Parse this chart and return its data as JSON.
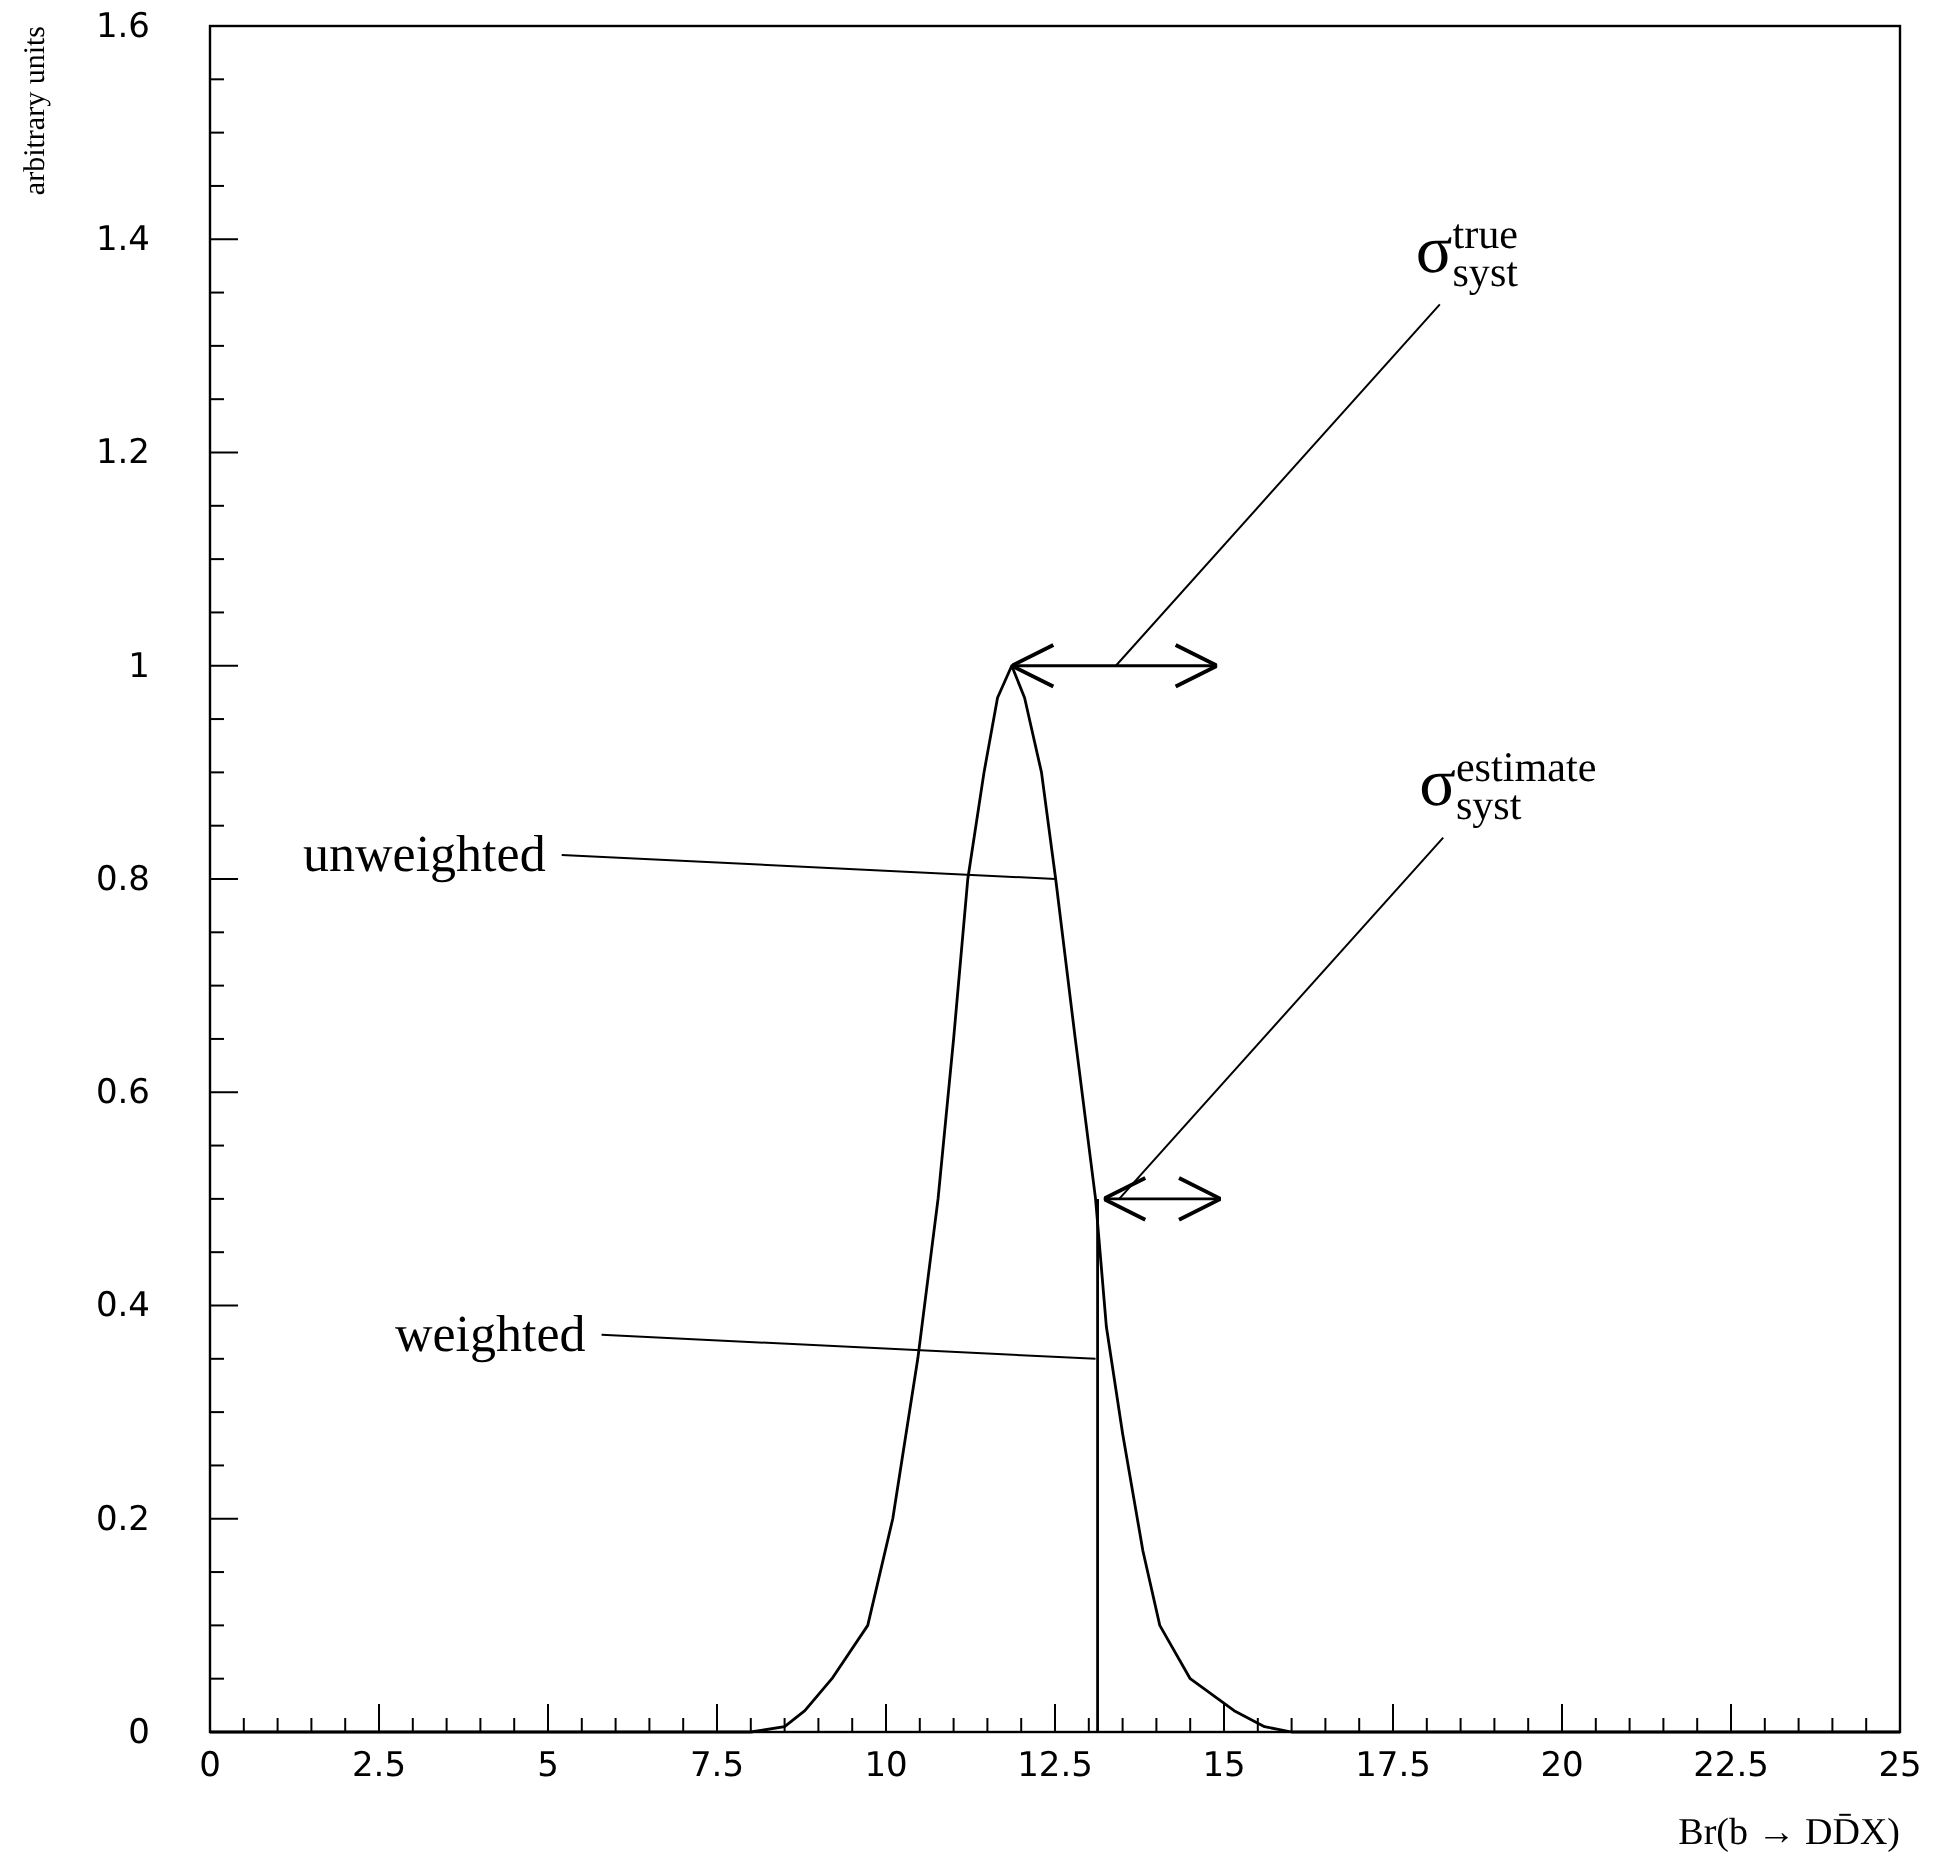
{
  "chart_data": {
    "type": "line",
    "xlabel": "Br(b → DD̄X)",
    "ylabel": "arbitrary units",
    "xlim": [
      0,
      25
    ],
    "ylim": [
      0,
      1.6
    ],
    "xticks": [
      0,
      {
        "value": 0.5,
        "label": null
      },
      {
        "value": 1,
        "label": null
      },
      {
        "value": 1.5,
        "label": null
      },
      {
        "value": 2,
        "label": null
      },
      2.5,
      {
        "value": 3,
        "label": null
      },
      {
        "value": 3.5,
        "label": null
      },
      {
        "value": 4,
        "label": null
      },
      {
        "value": 4.5,
        "label": null
      },
      5,
      {
        "value": 5.5,
        "label": null
      },
      {
        "value": 6,
        "label": null
      },
      {
        "value": 6.5,
        "label": null
      },
      {
        "value": 7,
        "label": null
      },
      7.5,
      {
        "value": 8,
        "label": null
      },
      {
        "value": 8.5,
        "label": null
      },
      {
        "value": 9,
        "label": null
      },
      {
        "value": 9.5,
        "label": null
      },
      10,
      {
        "value": 10.5,
        "label": null
      },
      {
        "value": 11,
        "label": null
      },
      {
        "value": 11.5,
        "label": null
      },
      {
        "value": 12,
        "label": null
      },
      12.5,
      {
        "value": 13,
        "label": null
      },
      {
        "value": 13.5,
        "label": null
      },
      {
        "value": 14,
        "label": null
      },
      {
        "value": 14.5,
        "label": null
      },
      15,
      {
        "value": 15.5,
        "label": null
      },
      {
        "value": 16,
        "label": null
      },
      {
        "value": 16.5,
        "label": null
      },
      {
        "value": 17,
        "label": null
      },
      17.5,
      {
        "value": 18,
        "label": null
      },
      {
        "value": 18.5,
        "label": null
      },
      {
        "value": 19,
        "label": null
      },
      {
        "value": 19.5,
        "label": null
      },
      20,
      {
        "value": 20.5,
        "label": null
      },
      {
        "value": 21,
        "label": null
      },
      {
        "value": 21.5,
        "label": null
      },
      {
        "value": 22,
        "label": null
      },
      22.5,
      {
        "value": 23,
        "label": null
      },
      {
        "value": 23.5,
        "label": null
      },
      {
        "value": 24,
        "label": null
      },
      {
        "value": 24.5,
        "label": null
      },
      25
    ],
    "yticks": [
      0,
      {
        "value": 0.05,
        "label": null
      },
      {
        "value": 0.1,
        "label": null
      },
      {
        "value": 0.15,
        "label": null
      },
      0.2,
      {
        "value": 0.25,
        "label": null
      },
      {
        "value": 0.3,
        "label": null
      },
      {
        "value": 0.35,
        "label": null
      },
      0.4,
      {
        "value": 0.45,
        "label": null
      },
      {
        "value": 0.5,
        "label": null
      },
      {
        "value": 0.55,
        "label": null
      },
      0.6,
      {
        "value": 0.65,
        "label": null
      },
      {
        "value": 0.7,
        "label": null
      },
      {
        "value": 0.75,
        "label": null
      },
      0.8,
      {
        "value": 0.85,
        "label": null
      },
      {
        "value": 0.9,
        "label": null
      },
      {
        "value": 0.95,
        "label": null
      },
      1,
      {
        "value": 1.05,
        "label": null
      },
      {
        "value": 1.1,
        "label": null
      },
      {
        "value": 1.15,
        "label": null
      },
      1.2,
      {
        "value": 1.25,
        "label": null
      },
      {
        "value": 1.3,
        "label": null
      },
      {
        "value": 1.35,
        "label": null
      },
      1.4,
      {
        "value": 1.45,
        "label": null
      },
      {
        "value": 1.5,
        "label": null
      },
      {
        "value": 1.55,
        "label": null
      },
      1.6
    ],
    "series": [
      {
        "color": "#000000",
        "x": [
          0,
          8,
          8.5,
          8.8,
          9.2,
          9.73,
          10.1,
          10.47,
          10.77,
          11,
          11.21,
          11.45,
          11.65,
          11.86,
          12.05,
          12.3,
          12.51,
          12.8,
          13.1,
          13.26,
          13.5,
          13.8,
          14.05,
          14.5,
          15.15,
          15.6,
          16,
          25
        ],
        "values": [
          0,
          0,
          0.005,
          0.02,
          0.05,
          0.1,
          0.2,
          0.35,
          0.5,
          0.65,
          0.8,
          0.9,
          0.97,
          1,
          0.97,
          0.9,
          0.8,
          0.65,
          0.5,
          0.38,
          0.28,
          0.17,
          0.1,
          0.05,
          0.02,
          0.005,
          0,
          0
        ]
      },
      {
        "color": "#000000",
        "x": [
          13.13,
          13.13
        ],
        "values": [
          0,
          0.5
        ]
      },
      {
        "color": "#000000",
        "x": [
          11.86,
          13.4,
          14.9
        ],
        "values": [
          1,
          1,
          1
        ]
      },
      {
        "color": "#000000",
        "x": [
          13.22,
          13.45,
          14.95
        ],
        "values": [
          0.5,
          0.5,
          0.5
        ]
      }
    ],
    "annotations": [
      {
        "text": "unweighted",
        "x": 12.51,
        "y": 0.8
      },
      {
        "text": "weighted",
        "x": 13.1,
        "y": 0.35
      },
      {
        "text": "σ$_{syst}$$^{true}$",
        "x": 13.4,
        "y": 1
      },
      {
        "text": "σ$_{syst}$$^{estimate}$",
        "x": 13.45,
        "y": 0.5
      }
    ]
  }
}
